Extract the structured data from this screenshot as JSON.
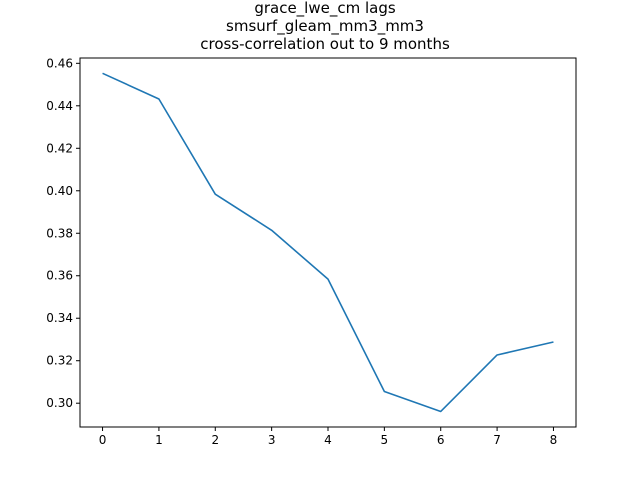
{
  "chart_data": {
    "type": "line",
    "title_lines": [
      "grace_lwe_cm lags",
      "smsurf_gleam_mm3_mm3",
      "cross-correlation out to 9 months"
    ],
    "xlabel": "",
    "ylabel": "",
    "x": [
      0,
      1,
      2,
      3,
      4,
      5,
      6,
      7,
      8
    ],
    "series": [
      {
        "color": "#1f77b4",
        "values": [
          0.4553,
          0.4432,
          0.3984,
          0.3814,
          0.3584,
          0.3055,
          0.2961,
          0.3227,
          0.3288
        ]
      }
    ],
    "xlim": [
      -0.4,
      8.4
    ],
    "ylim": [
      0.2888,
      0.4625
    ],
    "xticks": [
      0,
      1,
      2,
      3,
      4,
      5,
      6,
      7,
      8
    ],
    "xtick_labels": [
      "0",
      "1",
      "2",
      "3",
      "4",
      "5",
      "6",
      "7",
      "8"
    ],
    "yticks": [
      0.3,
      0.32,
      0.34,
      0.36,
      0.38,
      0.4,
      0.42,
      0.44,
      0.46
    ],
    "ytick_labels": [
      "0.30",
      "0.32",
      "0.34",
      "0.36",
      "0.38",
      "0.40",
      "0.42",
      "0.44",
      "0.46"
    ],
    "grid": false,
    "legend": "none"
  }
}
